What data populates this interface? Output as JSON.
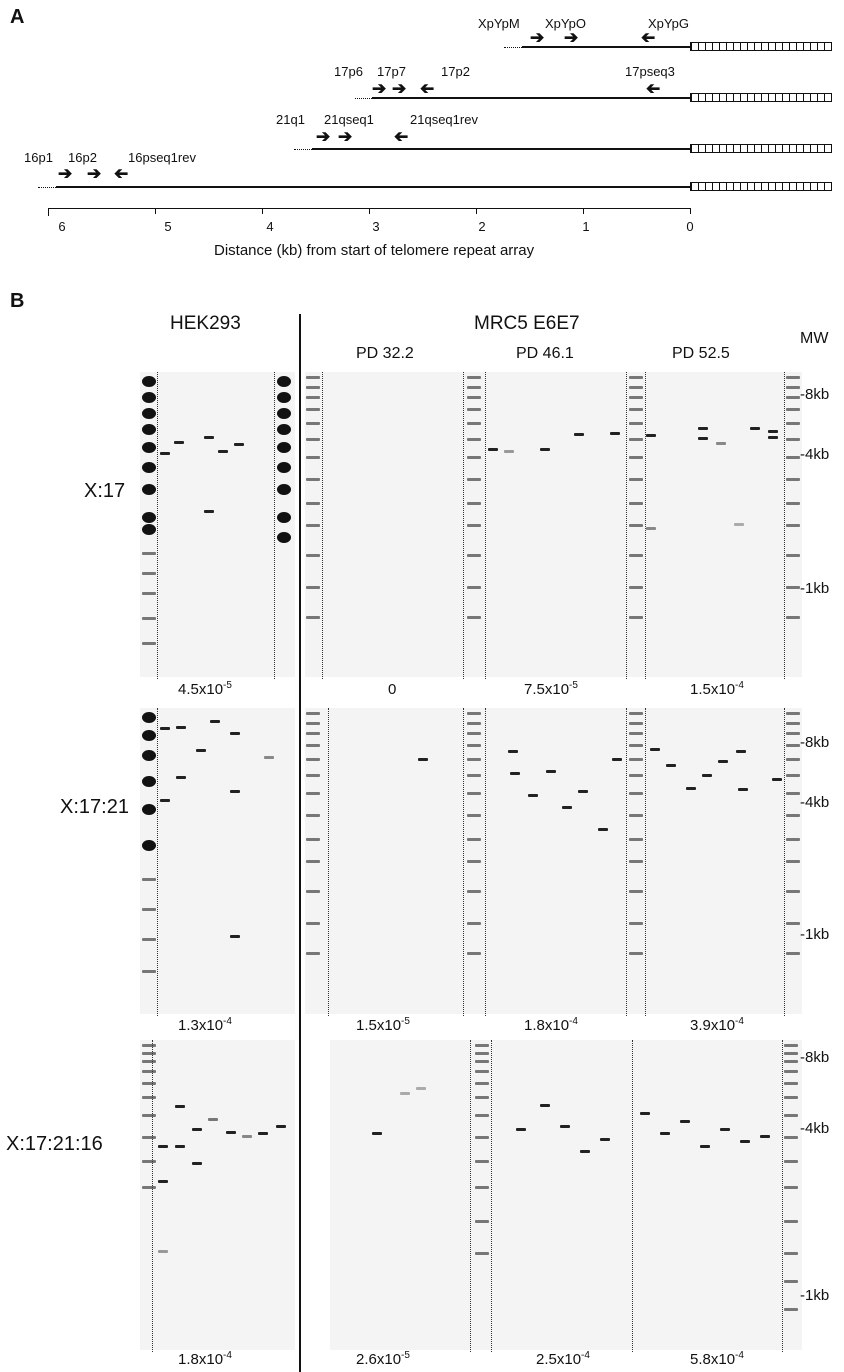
{
  "panel_a": {
    "letter": "A",
    "primers": {
      "row1": [
        "XpYpM",
        "XpYpO",
        "XpYpG"
      ],
      "row2": [
        "17p6",
        "17p7",
        "17p2",
        "17pseq3"
      ],
      "row3": [
        "21q1",
        "21qseq1",
        "21qseq1rev"
      ],
      "row4": [
        "16p1",
        "16p2",
        "16pseq1rev"
      ]
    },
    "axis_ticks": [
      "6",
      "5",
      "4",
      "3",
      "2",
      "1",
      "0"
    ],
    "axis_label": "Distance (kb) from start of telomere repeat array"
  },
  "panel_b": {
    "letter": "B",
    "header_left": "HEK293",
    "header_right": "MRC5 E6E7",
    "mw_label": "MW",
    "pd_labels": [
      "PD 32.2",
      "PD 46.1",
      "PD 52.5"
    ],
    "rows": [
      {
        "label": "X:17",
        "markers": [
          "-8kb",
          "-4kb",
          "-1kb"
        ],
        "freqs": [
          {
            "base": "4.5x10",
            "exp": "-5"
          },
          {
            "base": "0",
            "exp": ""
          },
          {
            "base": "7.5x10",
            "exp": "-5"
          },
          {
            "base": "1.5x10",
            "exp": "-4"
          }
        ]
      },
      {
        "label": "X:17:21",
        "markers": [
          "-8kb",
          "-4kb",
          "-1kb"
        ],
        "freqs": [
          {
            "base": "1.3x10",
            "exp": "-4"
          },
          {
            "base": "1.5x10",
            "exp": "-5"
          },
          {
            "base": "1.8x10",
            "exp": "-4"
          },
          {
            "base": "3.9x10",
            "exp": "-4"
          }
        ]
      },
      {
        "label": "X:17:21:16",
        "markers": [
          "-8kb",
          "-4kb",
          "-1kb"
        ],
        "freqs": [
          {
            "base": "1.8x10",
            "exp": "-4"
          },
          {
            "base": "2.6x10",
            "exp": "-5"
          },
          {
            "base": "2.5x10",
            "exp": "-4"
          },
          {
            "base": "5.8x10",
            "exp": "-4"
          }
        ]
      }
    ]
  }
}
